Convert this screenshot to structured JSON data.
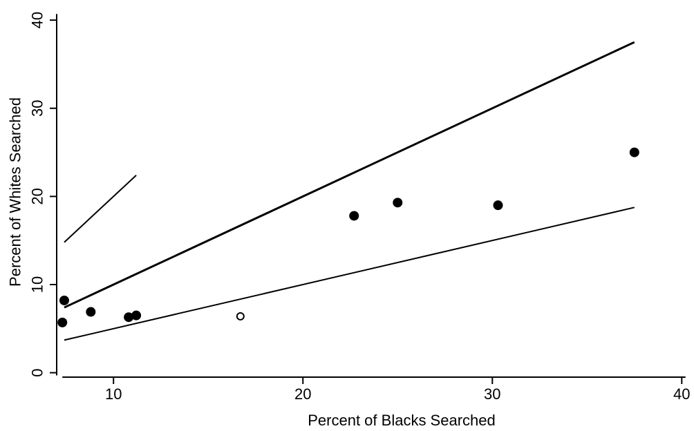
{
  "chart_data": {
    "type": "scatter",
    "xlabel": "Percent of Blacks Searched",
    "ylabel": "Percent of Whites Searched",
    "xlim": [
      7,
      40.5
    ],
    "ylim": [
      -0.5,
      41.5
    ],
    "xticks": [
      10,
      20,
      30,
      40
    ],
    "yticks": [
      0,
      10,
      20,
      30,
      40
    ],
    "grid": false,
    "series": [
      {
        "marker": "filled-circle",
        "points": [
          [
            7.4,
            8.2
          ],
          [
            7.3,
            5.7
          ],
          [
            8.8,
            6.9
          ],
          [
            10.8,
            6.3
          ],
          [
            11.2,
            6.5
          ],
          [
            22.7,
            17.8
          ],
          [
            25.0,
            19.3
          ],
          [
            30.3,
            19.0
          ],
          [
            37.5,
            25.0
          ]
        ]
      },
      {
        "marker": "hollow-circle",
        "points": [
          [
            16.7,
            6.4
          ]
        ]
      }
    ],
    "reference_lines": [
      {
        "x1": 7.4,
        "y1": 7.4,
        "x2": 37.5,
        "y2": 37.5,
        "weight": "heavy"
      },
      {
        "x1": 7.4,
        "y1": 3.7,
        "x2": 37.5,
        "y2": 18.75,
        "weight": "thin"
      },
      {
        "x1": 7.4,
        "y1": 14.8,
        "x2": 11.2,
        "y2": 22.4,
        "weight": "thin"
      }
    ]
  }
}
